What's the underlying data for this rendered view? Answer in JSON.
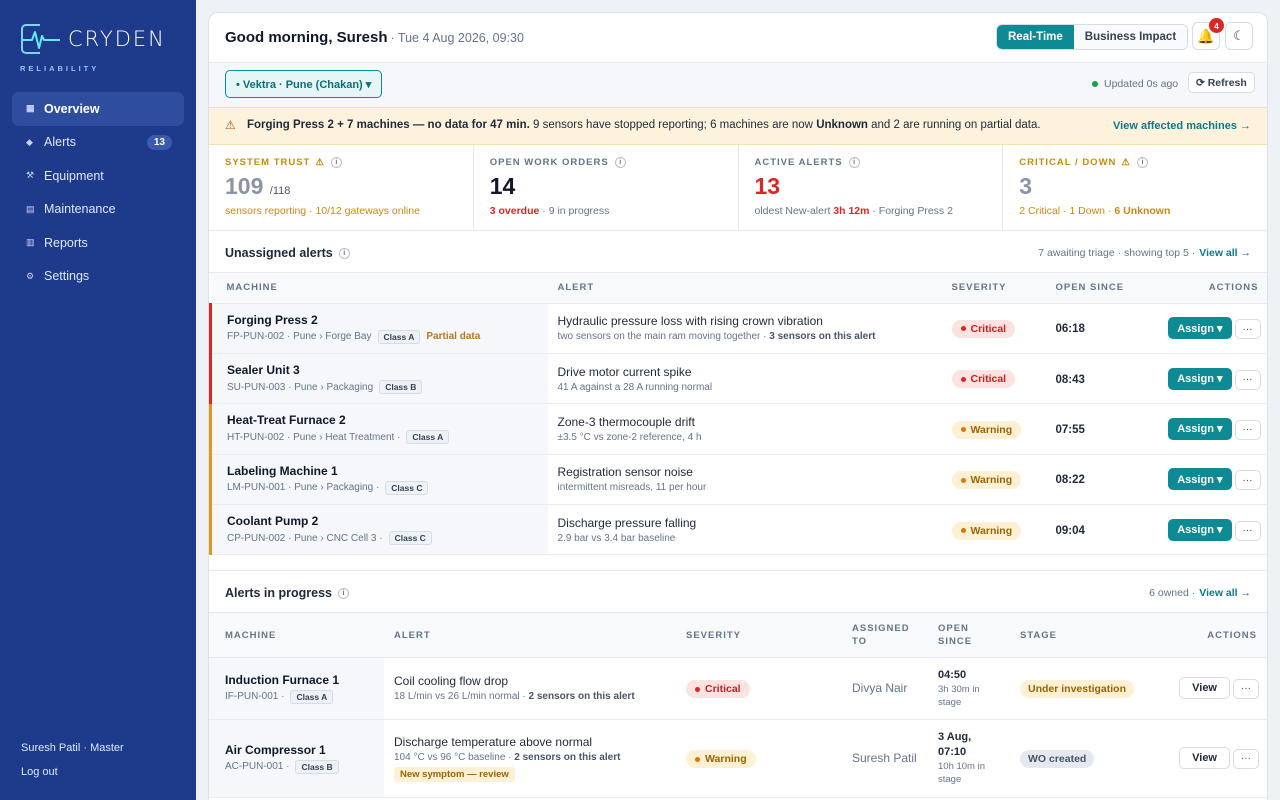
{
  "brand": {
    "name": "CRYDEN",
    "tagline": "RELIABILITY"
  },
  "nav": [
    {
      "label": "Overview",
      "icon": "grid-icon",
      "active": true
    },
    {
      "label": "Alerts",
      "icon": "alert-icon",
      "badge": "13"
    },
    {
      "label": "Equipment",
      "icon": "wrench-icon"
    },
    {
      "label": "Maintenance",
      "icon": "calendar-icon"
    },
    {
      "label": "Reports",
      "icon": "report-icon"
    },
    {
      "label": "Settings",
      "icon": "gear-icon"
    }
  ],
  "sidebar_footer": {
    "user": "Suresh Patil · Master",
    "logout": "Log out"
  },
  "header": {
    "greeting": "Good morning, Suresh",
    "datetime": "· Tue 4 Aug 2026, 09:30",
    "toggle": [
      "Real-Time",
      "Business Impact"
    ],
    "notifications": "4"
  },
  "subbar": {
    "site": "• Vektra · Pune (Chakan) ▾",
    "updated": "Updated 0s ago",
    "refresh": "⟳ Refresh"
  },
  "banner": {
    "bold": "Forging Press 2 + 7 machines — no data for 47 min.",
    "text1": " 9 sensors have stopped reporting; 6 machines are now ",
    "bold2": "Unknown",
    "text2": " and 2 are running on partial data.",
    "link": "View affected machines →"
  },
  "kpis": {
    "trust": {
      "label": "SYSTEM TRUST",
      "value": "109",
      "denom": "/118",
      "sub": "sensors reporting · 10/12 gateways online"
    },
    "orders": {
      "label": "OPEN WORK ORDERS",
      "value": "14",
      "overdue": "3 overdue",
      "rest": " · 9 in progress"
    },
    "alerts": {
      "label": "ACTIVE ALERTS",
      "value": "13",
      "pre": "oldest New-alert ",
      "time": "3h 12m",
      "post": " · Forging Press 2"
    },
    "down": {
      "label": "CRITICAL / DOWN",
      "value": "3",
      "sub1": "2 Critical · 1 Down · ",
      "sub2": "6 Unknown"
    }
  },
  "unassigned": {
    "title": "Unassigned alerts",
    "meta": "7 awaiting triage · showing top 5 ·",
    "link": "View all →",
    "cols": [
      "MACHINE",
      "ALERT",
      "SEVERITY",
      "OPEN SINCE",
      "ACTIONS"
    ],
    "rows": [
      {
        "name": "Forging Press 2",
        "meta": "FP-PUN-002 · Pune › Forge Bay",
        "cls": "Class A",
        "partial": "Partial data",
        "alert": "Hydraulic pressure loss with rising crown vibration",
        "sub": "two sensors on the main ram moving together · ",
        "subb": "3 sensors on this alert",
        "sev": "Critical",
        "since": "06:18"
      },
      {
        "name": "Sealer Unit 3",
        "meta": "SU-PUN-003 · Pune › Packaging",
        "cls": "Class B",
        "partial": "",
        "alert": "Drive motor current spike",
        "sub": "41 A against a 28 A running normal",
        "subb": "",
        "sev": "Critical",
        "since": "08:43"
      },
      {
        "name": "Heat-Treat Furnace 2",
        "meta": "HT-PUN-002 · Pune › Heat Treatment ·",
        "cls": "Class A",
        "partial": "",
        "alert": "Zone-3 thermocouple drift",
        "sub": "±3.5 °C vs zone-2 reference, 4 h",
        "subb": "",
        "sev": "Warning",
        "since": "07:55"
      },
      {
        "name": "Labeling Machine 1",
        "meta": "LM-PUN-001 · Pune › Packaging ·",
        "cls": "Class C",
        "partial": "",
        "alert": "Registration sensor noise",
        "sub": "intermittent misreads, 11 per hour",
        "subb": "",
        "sev": "Warning",
        "since": "08:22"
      },
      {
        "name": "Coolant Pump 2",
        "meta": "CP-PUN-002 · Pune › CNC Cell 3 ·",
        "cls": "Class C",
        "partial": "",
        "alert": "Discharge pressure falling",
        "sub": "2.9 bar vs 3.4 bar baseline",
        "subb": "",
        "sev": "Warning",
        "since": "09:04"
      }
    ],
    "assign": "Assign ▾",
    "more": "···"
  },
  "inprogress": {
    "title": "Alerts in progress",
    "meta": "6 owned ·",
    "link": "View all →",
    "cols": [
      "MACHINE",
      "ALERT",
      "SEVERITY",
      "ASSIGNED TO",
      "OPEN SINCE",
      "STAGE",
      "ACTIONS"
    ],
    "rows": [
      {
        "name": "Induction Furnace 1",
        "meta": "IF-PUN-001 ·",
        "cls": "Class A",
        "alert": "Coil cooling flow drop",
        "sub": "18 L/min vs 26 L/min normal · ",
        "subb": "2 sensors on this alert",
        "tag": "",
        "sev": "Critical",
        "who": "Divya Nair",
        "since": "04:50",
        "since_sub": "3h 30m in stage",
        "stage": "Under investigation"
      },
      {
        "name": "Air Compressor 1",
        "meta": "AC-PUN-001 ·",
        "cls": "Class B",
        "alert": "Discharge temperature above normal",
        "sub": "104 °C vs 96 °C baseline · ",
        "subb": "2 sensors on this alert",
        "tag": "New symptom — review",
        "sev": "Warning",
        "who": "Suresh Patil",
        "since": "3 Aug, 07:10",
        "since_sub": "10h 10m in stage",
        "stage": "WO created"
      }
    ],
    "view": "View",
    "more": "···"
  },
  "colors": {
    "sidebar": "#1e3a8a",
    "accent": "#0d8a94",
    "critical": "#dc2626",
    "warning": "#d97706",
    "trust": "#c98a0b"
  }
}
